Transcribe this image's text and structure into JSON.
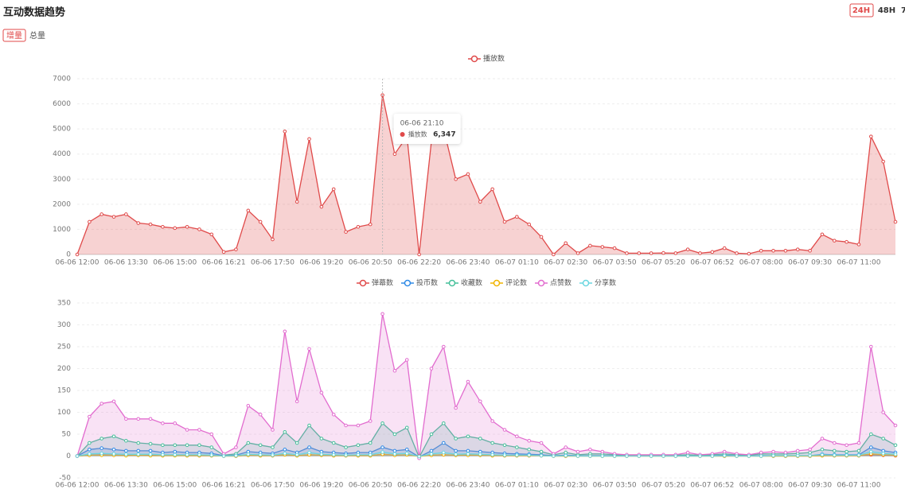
{
  "header": {
    "title": "互动数据趋势",
    "tabs": [
      "增量",
      "总量"
    ],
    "ranges": [
      "24H",
      "48H",
      "7"
    ]
  },
  "chart_data": [
    {
      "type": "line",
      "area": true,
      "grid": true,
      "categories": [
        "06-06 12:00",
        null,
        null,
        null,
        "06-06 13:30",
        null,
        null,
        null,
        "06-06 15:00",
        null,
        null,
        null,
        "06-06 16:21",
        null,
        null,
        null,
        "06-06 17:50",
        null,
        null,
        null,
        "06-06 19:20",
        null,
        null,
        null,
        "06-06 20:50",
        null,
        null,
        null,
        "06-06 22:20",
        null,
        null,
        null,
        "06-06 23:40",
        null,
        null,
        null,
        "06-07 01:10",
        null,
        null,
        null,
        "06-07 02:30",
        null,
        null,
        null,
        "06-07 03:50",
        null,
        null,
        null,
        "06-07 05:20",
        null,
        null,
        null,
        "06-07 06:52",
        null,
        null,
        null,
        "06-07 08:00",
        null,
        null,
        null,
        "06-07 09:30",
        null,
        null,
        null,
        "06-07 11:00",
        null,
        null,
        null
      ],
      "series": [
        {
          "name": "播放数",
          "color": "#e04a4a",
          "values": [
            0,
            1300,
            1600,
            1500,
            1600,
            1250,
            1200,
            1100,
            1050,
            1100,
            1000,
            800,
            100,
            200,
            1750,
            1300,
            600,
            4900,
            2100,
            4600,
            1900,
            2600,
            900,
            1100,
            1200,
            6347,
            4000,
            4700,
            0,
            4500,
            5000,
            3000,
            3200,
            2100,
            2600,
            1300,
            1500,
            1200,
            700,
            0,
            450,
            50,
            350,
            300,
            250,
            50,
            50,
            50,
            60,
            50,
            200,
            50,
            100,
            250,
            50,
            30,
            150,
            150,
            150,
            200,
            150,
            800,
            550,
            500,
            400,
            4700,
            3700,
            1300
          ]
        }
      ],
      "ylim": [
        0,
        7000
      ],
      "yticks": [
        0,
        1000,
        2000,
        3000,
        4000,
        5000,
        6000,
        7000
      ],
      "tooltip": {
        "title": "06-06 21:10",
        "value": 6347,
        "value_label": "6,347"
      }
    },
    {
      "type": "line",
      "area": true,
      "grid": true,
      "categories": [
        "06-06 12:00",
        null,
        null,
        null,
        "06-06 13:30",
        null,
        null,
        null,
        "06-06 15:00",
        null,
        null,
        null,
        "06-06 16:21",
        null,
        null,
        null,
        "06-06 17:50",
        null,
        null,
        null,
        "06-06 19:20",
        null,
        null,
        null,
        "06-06 20:50",
        null,
        null,
        null,
        "06-06 22:20",
        null,
        null,
        null,
        "06-06 23:40",
        null,
        null,
        null,
        "06-07 01:10",
        null,
        null,
        null,
        "06-07 02:30",
        null,
        null,
        null,
        "06-07 03:50",
        null,
        null,
        null,
        "06-07 05:20",
        null,
        null,
        null,
        "06-07 06:52",
        null,
        null,
        null,
        "06-07 08:00",
        null,
        null,
        null,
        "06-07 09:30",
        null,
        null,
        null,
        "06-07 11:00",
        null,
        null,
        null
      ],
      "series": [
        {
          "name": "弹幕数",
          "color": "#e04a4a",
          "values": [
            0,
            2,
            3,
            2,
            2,
            2,
            2,
            1,
            2,
            1,
            1,
            1,
            0,
            0,
            2,
            1,
            1,
            3,
            1,
            3,
            2,
            1,
            1,
            1,
            1,
            4,
            2,
            3,
            0,
            2,
            3,
            2,
            2,
            2,
            1,
            1,
            1,
            1,
            1,
            0,
            0,
            0,
            0,
            0,
            0,
            0,
            0,
            0,
            0,
            0,
            0,
            0,
            0,
            0,
            0,
            0,
            0,
            0,
            0,
            0,
            0,
            1,
            1,
            1,
            1,
            3,
            2,
            1
          ]
        },
        {
          "name": "投币数",
          "color": "#2f8ae6",
          "values": [
            0,
            15,
            18,
            15,
            12,
            12,
            12,
            8,
            10,
            8,
            8,
            6,
            1,
            2,
            10,
            8,
            6,
            15,
            8,
            20,
            10,
            8,
            6,
            8,
            8,
            20,
            12,
            15,
            -2,
            12,
            30,
            12,
            12,
            10,
            8,
            6,
            5,
            4,
            3,
            1,
            2,
            1,
            1,
            1,
            1,
            1,
            1,
            1,
            1,
            1,
            1,
            1,
            1,
            2,
            1,
            1,
            1,
            1,
            1,
            1,
            1,
            4,
            3,
            3,
            3,
            20,
            12,
            8
          ]
        },
        {
          "name": "收藏数",
          "color": "#45c09a",
          "values": [
            0,
            30,
            40,
            45,
            35,
            30,
            28,
            25,
            25,
            25,
            25,
            20,
            2,
            5,
            30,
            25,
            20,
            55,
            30,
            70,
            40,
            30,
            20,
            25,
            30,
            75,
            50,
            65,
            -3,
            50,
            75,
            40,
            45,
            40,
            30,
            25,
            20,
            15,
            10,
            3,
            8,
            3,
            5,
            5,
            3,
            2,
            2,
            2,
            2,
            2,
            3,
            2,
            3,
            5,
            3,
            2,
            5,
            5,
            5,
            6,
            8,
            15,
            12,
            10,
            12,
            50,
            40,
            25
          ]
        },
        {
          "name": "评论数",
          "color": "#f0b400",
          "values": [
            0,
            2,
            2,
            2,
            1,
            2,
            1,
            1,
            1,
            1,
            1,
            1,
            0,
            0,
            2,
            1,
            1,
            3,
            1,
            3,
            2,
            1,
            1,
            1,
            1,
            4,
            2,
            3,
            -1,
            2,
            3,
            2,
            2,
            2,
            1,
            1,
            1,
            1,
            1,
            0,
            0,
            0,
            0,
            0,
            0,
            0,
            0,
            0,
            0,
            0,
            0,
            0,
            0,
            0,
            0,
            0,
            0,
            0,
            0,
            0,
            0,
            1,
            1,
            1,
            1,
            5,
            3,
            2
          ]
        },
        {
          "name": "点赞数",
          "color": "#e26ccf",
          "values": [
            0,
            90,
            120,
            125,
            85,
            85,
            85,
            75,
            75,
            60,
            60,
            50,
            5,
            20,
            115,
            95,
            60,
            285,
            125,
            245,
            145,
            95,
            70,
            70,
            80,
            325,
            195,
            220,
            -5,
            200,
            250,
            110,
            170,
            125,
            80,
            60,
            45,
            35,
            30,
            5,
            20,
            10,
            15,
            10,
            5,
            3,
            3,
            3,
            3,
            3,
            8,
            3,
            5,
            10,
            5,
            3,
            8,
            10,
            8,
            12,
            15,
            40,
            30,
            25,
            30,
            250,
            100,
            70
          ]
        },
        {
          "name": "分享数",
          "color": "#6ad6e0",
          "values": [
            0,
            5,
            6,
            5,
            4,
            4,
            4,
            3,
            3,
            3,
            3,
            2,
            0,
            1,
            4,
            3,
            2,
            6,
            3,
            8,
            4,
            3,
            2,
            3,
            3,
            9,
            5,
            6,
            -1,
            5,
            8,
            4,
            5,
            4,
            3,
            2,
            2,
            2,
            1,
            0,
            1,
            0,
            0,
            0,
            0,
            0,
            0,
            0,
            0,
            0,
            0,
            0,
            0,
            1,
            0,
            0,
            0,
            1,
            1,
            1,
            1,
            3,
            2,
            2,
            2,
            10,
            6,
            4
          ]
        }
      ],
      "ylim": [
        -50,
        350
      ],
      "yticks": [
        -50,
        0,
        50,
        100,
        150,
        200,
        250,
        300,
        350
      ]
    }
  ]
}
